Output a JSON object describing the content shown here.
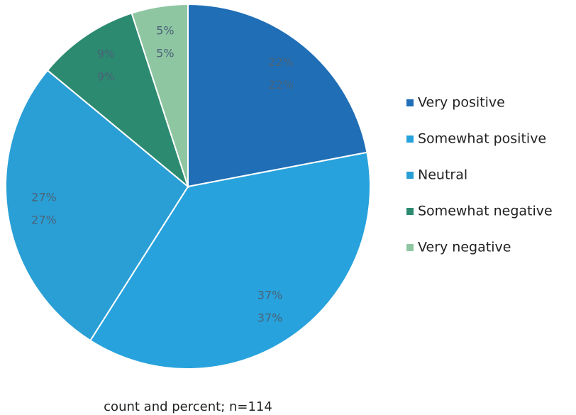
{
  "chart_data": {
    "type": "pie",
    "categories": [
      "Very positive",
      "Somewhat positive",
      "Neutral",
      "Somewhat negative",
      "Very negative"
    ],
    "values": [
      22,
      37,
      27,
      9,
      5
    ],
    "value_labels": [
      "22%",
      "37%",
      "27%",
      "9%",
      "5%"
    ],
    "colors": [
      "#1f6eb6",
      "#27a2dc",
      "#2a9fd6",
      "#2b8a70",
      "#8fc6a2"
    ],
    "caption": "count and percent; n=114",
    "legend": "right"
  }
}
